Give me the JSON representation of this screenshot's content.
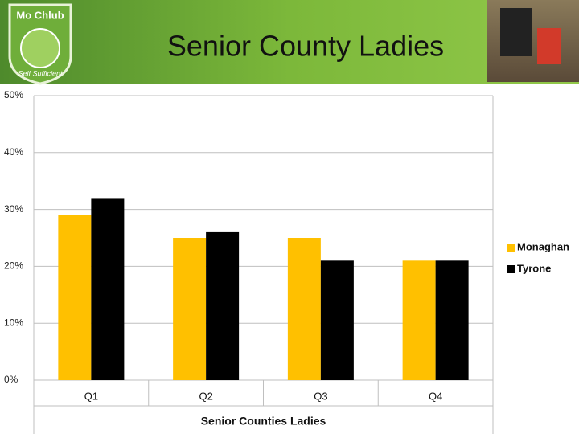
{
  "header": {
    "title": "Senior County Ladies",
    "logo_name": "Mo Chlub",
    "logo_tagline": "Self Sufficient"
  },
  "chart_data": {
    "type": "bar",
    "categories": [
      "Q1",
      "Q2",
      "Q3",
      "Q4"
    ],
    "series": [
      {
        "name": "Monaghan",
        "color": "#ffc000",
        "values": [
          29,
          25,
          25,
          21
        ]
      },
      {
        "name": "Tyrone",
        "color": "#000000",
        "values": [
          32,
          26,
          21,
          21
        ]
      }
    ],
    "x_label": "Senior Counties Ladies",
    "ylim": [
      0,
      50
    ],
    "yticks": [
      {
        "value": 0,
        "label": "0%"
      },
      {
        "value": 10,
        "label": "10%"
      },
      {
        "value": 20,
        "label": "20%"
      },
      {
        "value": 30,
        "label": "30%"
      },
      {
        "value": 40,
        "label": "40%"
      },
      {
        "value": 50,
        "label": "50%"
      }
    ],
    "grid": true,
    "legend": "right"
  }
}
